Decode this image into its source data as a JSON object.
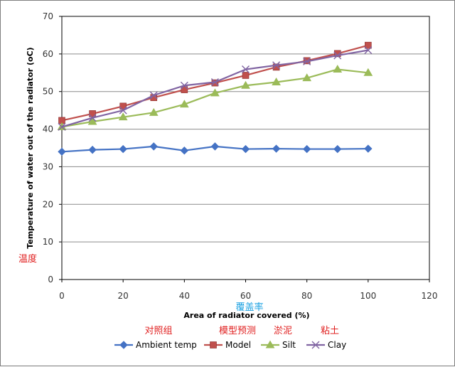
{
  "chart_data": {
    "type": "line",
    "xlabel": "Area of radiator covered (%)",
    "ylabel": "Temperature of water out of the radiator (oC)",
    "xlim": [
      0,
      120
    ],
    "ylim": [
      0,
      70
    ],
    "xticks": [
      "0",
      "20",
      "40",
      "60",
      "80",
      "100",
      "120"
    ],
    "yticks": [
      "0",
      "10",
      "20",
      "30",
      "40",
      "50",
      "60",
      "70"
    ],
    "grid": "horizontal",
    "legend": "bottom",
    "x": [
      0,
      10,
      20,
      30,
      40,
      50,
      60,
      70,
      80,
      90,
      100
    ],
    "series": [
      {
        "name": "Ambient temp",
        "color": "#4472c4",
        "marker": "diamond",
        "values": [
          34.0,
          34.5,
          34.7,
          35.4,
          34.3,
          35.4,
          34.7,
          34.8,
          34.7,
          34.7,
          34.8
        ]
      },
      {
        "name": "Model",
        "color": "#c0504d",
        "marker": "square",
        "values": [
          42.3,
          44.1,
          46.1,
          48.4,
          50.5,
          52.3,
          54.3,
          56.5,
          58.2,
          60.1,
          62.3
        ]
      },
      {
        "name": "Silt",
        "color": "#9bbb59",
        "marker": "triangle",
        "values": [
          40.6,
          42.0,
          43.2,
          44.4,
          46.6,
          49.6,
          51.6,
          52.5,
          53.6,
          55.9,
          55.0
        ]
      },
      {
        "name": "Clay",
        "color": "#8064a2",
        "marker": "x",
        "values": [
          40.6,
          43.0,
          45.0,
          49.0,
          51.6,
          52.5,
          55.9,
          57.0,
          58.0,
          59.6,
          61.0
        ]
      }
    ],
    "annotations": {
      "ylabel_cn": "温度",
      "xlabel_cn": "覆盖率",
      "legend_cn": [
        "对照组",
        "模型预测",
        "淤泥",
        "粘土"
      ]
    }
  }
}
